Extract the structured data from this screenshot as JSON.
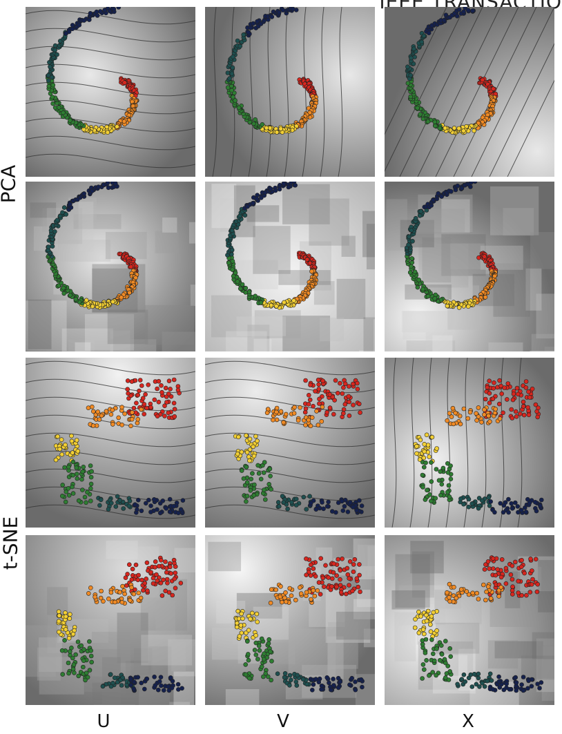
{
  "header": {
    "text": "IEEE TRANSACTIO"
  },
  "row_labels": {
    "pca": "PCA",
    "tsne": "t-SNE"
  },
  "column_labels": {
    "u": "U",
    "v": "V",
    "x": "X"
  },
  "colors": {
    "red": "#d7261e",
    "orange": "#f08a24",
    "yellow": "#f2cf34",
    "green": "#2e7d32",
    "teal": "#1e4f4f",
    "navy": "#15214d",
    "contour": "#333333",
    "light_bg": "#e8e8e8",
    "mid_bg": "#b7b7b7",
    "dark_bg": "#6b6b6b"
  },
  "layout": {
    "rows": [
      "pca-contour",
      "pca-field",
      "tsne-contour",
      "tsne-field"
    ],
    "columns": [
      "U",
      "V",
      "X"
    ]
  }
}
